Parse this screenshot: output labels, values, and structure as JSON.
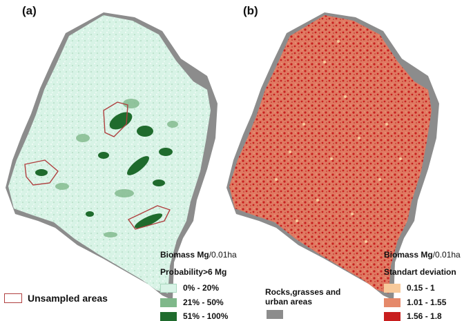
{
  "panels": {
    "a_label": "(a)",
    "b_label": "(b)"
  },
  "legend_a": {
    "title_bold": "Biomass Mg",
    "title_rest": "/0.01ha",
    "subtitle": "Probability>6 Mg",
    "classes": [
      {
        "label": "0% - 20%",
        "color": "#d8f3e6"
      },
      {
        "label": "21% - 50%",
        "color": "#7fb88a"
      },
      {
        "label": "51% - 100%",
        "color": "#1f6b2d"
      }
    ]
  },
  "legend_b": {
    "title_bold": "Biomass Mg",
    "title_rest": "/0.01ha",
    "subtitle": "Standart deviation",
    "classes": [
      {
        "label": "0.15 - 1",
        "color": "#f7c99a"
      },
      {
        "label": "1.01 - 1.55",
        "color": "#e5896a"
      },
      {
        "label": "1.56 - 1.8",
        "color": "#c81e1e"
      }
    ]
  },
  "unsampled": {
    "label": "Unsampled areas",
    "color": "#b04040"
  },
  "rocks": {
    "label_line1": "Rocks,grasses and",
    "label_line2": "urban areas",
    "color": "#8c8c8c"
  }
}
